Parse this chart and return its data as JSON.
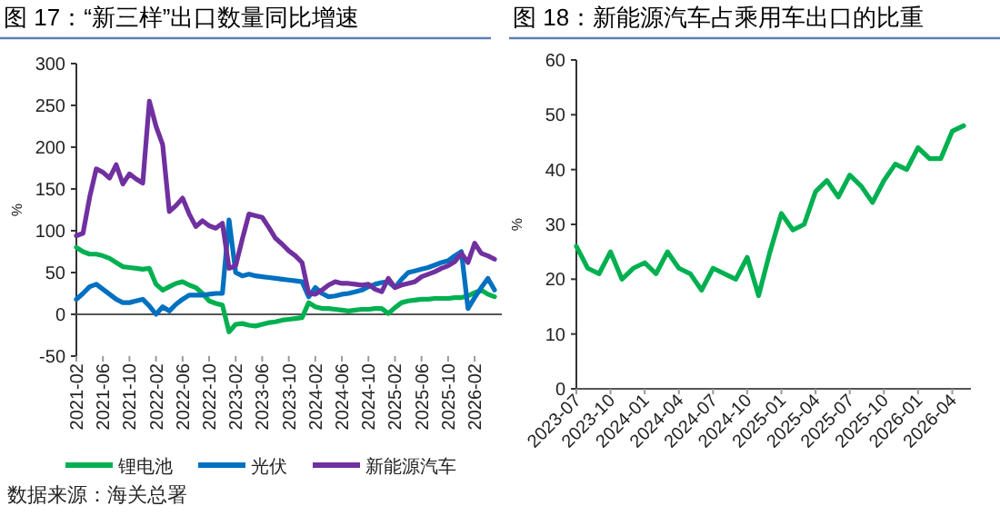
{
  "chart_data": [
    {
      "type": "line",
      "title": "图 17：“新三样”出口数量同比增速",
      "ylabel": "%",
      "categories": [
        "2021-02",
        null,
        null,
        null,
        "2021-06",
        null,
        null,
        null,
        "2021-10",
        null,
        null,
        null,
        "2022-02",
        null,
        null,
        null,
        "2022-06",
        null,
        null,
        null,
        "2022-10",
        null,
        null,
        null,
        "2023-02",
        null,
        null,
        null,
        "2023-06",
        null,
        null,
        null,
        "2023-10",
        null,
        null,
        null,
        "2024-02",
        null,
        null,
        null,
        "2024-06",
        null,
        null,
        null,
        "2024-10",
        null,
        null,
        null,
        "2025-02",
        null,
        null,
        null,
        "2025-06",
        null,
        null,
        null,
        "2025-10",
        null,
        null,
        null,
        "2026-02",
        null,
        null,
        null
      ],
      "series": [
        {
          "name": "锂电池",
          "color": "#00b050",
          "values": [
            80,
            75,
            72,
            72,
            70,
            67,
            62,
            57,
            56,
            55,
            54,
            55,
            36,
            29,
            33,
            37,
            39,
            35,
            32,
            25,
            16,
            13,
            11,
            -21,
            -12,
            -11,
            -13,
            -14,
            -12,
            -10,
            -9,
            -7,
            -6,
            -5,
            -4,
            14,
            9,
            7,
            7,
            6,
            5,
            4,
            5,
            6,
            6,
            7,
            7,
            1,
            8,
            14,
            16,
            17,
            18,
            18,
            19,
            19,
            19,
            20,
            20,
            22,
            26,
            29,
            24,
            21
          ]
        },
        {
          "name": "光伏",
          "color": "#0070c0",
          "values": [
            18,
            25,
            33,
            36,
            30,
            24,
            18,
            14,
            14,
            16,
            18,
            10,
            0,
            9,
            4,
            12,
            18,
            23,
            23,
            23,
            24,
            25,
            25,
            113,
            50,
            46,
            48,
            46,
            45,
            44,
            43,
            42,
            41,
            40,
            39,
            21,
            32,
            25,
            21,
            22,
            24,
            25,
            27,
            29,
            33,
            36,
            38,
            39,
            32,
            42,
            50,
            52,
            54,
            56,
            59,
            62,
            64,
            70,
            75,
            7,
            20,
            32,
            43,
            29
          ]
        },
        {
          "name": "新能源汽车",
          "color": "#7030a0",
          "values": [
            94,
            97,
            140,
            174,
            170,
            163,
            179,
            156,
            168,
            162,
            157,
            255,
            225,
            203,
            123,
            130,
            139,
            120,
            105,
            112,
            106,
            103,
            109,
            55,
            58,
            90,
            120,
            118,
            116,
            104,
            91,
            84,
            76,
            70,
            62,
            25,
            24,
            29,
            35,
            39,
            37,
            37,
            36,
            35,
            36,
            30,
            27,
            43,
            32,
            35,
            37,
            39,
            45,
            48,
            51,
            55,
            58,
            63,
            73,
            62,
            85,
            73,
            70,
            66
          ]
        }
      ],
      "ylim": [
        -50,
        300
      ],
      "yticks": [
        -50,
        0,
        50,
        100,
        150,
        200,
        250,
        300
      ],
      "legend": "bottom",
      "line_style": "solid",
      "marker": "none",
      "annotations": [
        "数据来源：海关总署"
      ]
    },
    {
      "type": "line",
      "title": "图 18：新能源汽车占乘用车出口的比重",
      "ylabel": "%",
      "categories": [
        "2023-07",
        null,
        null,
        "2023-10",
        null,
        null,
        "2024-01",
        null,
        null,
        "2024-04",
        null,
        null,
        "2024-07",
        null,
        null,
        "2024-10",
        null,
        null,
        "2025-01",
        null,
        null,
        "2025-04",
        null,
        null,
        "2025-07",
        null,
        null,
        "2025-10",
        null,
        null,
        "2026-01",
        null,
        null,
        "2026-04",
        null
      ],
      "series": [
        {
          "color": "#00b050",
          "values": [
            26,
            22,
            21,
            25,
            20,
            22,
            23,
            21,
            25,
            22,
            21,
            18,
            22,
            21,
            20,
            24,
            17,
            25,
            32,
            29,
            30,
            36,
            38,
            35,
            39,
            37,
            34,
            38,
            41,
            40,
            44,
            42,
            42,
            47,
            48
          ]
        }
      ],
      "ylim": [
        0,
        60
      ],
      "yticks": [
        0,
        10,
        20,
        30,
        40,
        50,
        60
      ],
      "legend": false,
      "line_style": "solid",
      "marker": "none"
    }
  ]
}
